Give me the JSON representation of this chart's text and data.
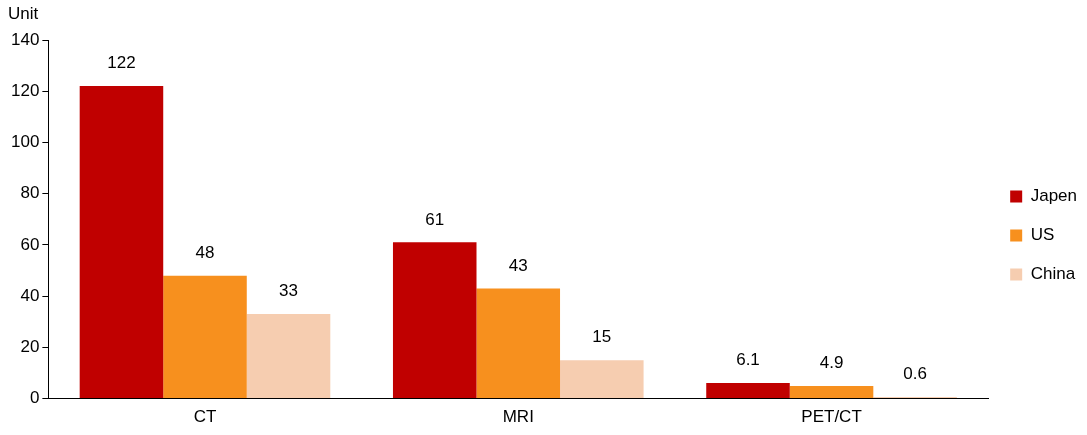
{
  "chart_data": {
    "type": "bar",
    "ylabel": "Unit",
    "categories": [
      "CT",
      "MRI",
      "PET/CT"
    ],
    "series": [
      {
        "name": "Japen",
        "color": "#c00000",
        "values": [
          122,
          61,
          6.1
        ]
      },
      {
        "name": "US",
        "color": "#f7901e",
        "values": [
          48,
          43,
          4.9
        ]
      },
      {
        "name": "China",
        "color": "#f6cdb0",
        "values": [
          33,
          15,
          0.6
        ]
      }
    ],
    "ylim": [
      0,
      140
    ],
    "yticks": [
      0,
      20,
      40,
      60,
      80,
      100,
      120,
      140
    ],
    "grid": false,
    "legend": "right",
    "data_labels": true
  }
}
